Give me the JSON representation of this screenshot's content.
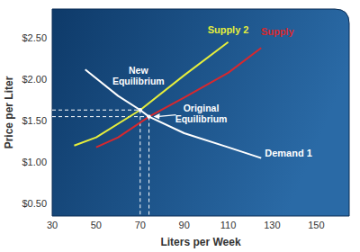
{
  "chart_data": {
    "type": "line",
    "x_label": "Liters per Week",
    "y_label": "Price per Liter",
    "xlim": [
      30,
      165
    ],
    "ylim": [
      0.35,
      2.85
    ],
    "xticks": [
      30,
      50,
      70,
      90,
      110,
      130,
      150
    ],
    "yticks": [
      {
        "value": 0.5,
        "label": "$0.50"
      },
      {
        "value": 1.0,
        "label": "$1.00"
      },
      {
        "value": 1.5,
        "label": "$1.50"
      },
      {
        "value": 2.0,
        "label": "$2.00"
      },
      {
        "value": 2.5,
        "label": "$2.50"
      }
    ],
    "grid": false,
    "series": [
      {
        "name": "Supply 2",
        "color": "#e6ee3c",
        "x": [
          40,
          50,
          70,
          90,
          110
        ],
        "values": [
          1.2,
          1.3,
          1.63,
          2.05,
          2.45
        ]
      },
      {
        "name": "Supply",
        "color": "#d7282e",
        "x": [
          50,
          60,
          74,
          90,
          110,
          125
        ],
        "values": [
          1.18,
          1.3,
          1.55,
          1.78,
          2.08,
          2.38
        ]
      },
      {
        "name": "Demand 1",
        "color": "#ffffff",
        "x": [
          45,
          60,
          70,
          74,
          90,
          110,
          125
        ],
        "values": [
          2.12,
          1.8,
          1.63,
          1.55,
          1.35,
          1.18,
          1.05
        ]
      }
    ],
    "equilibria": [
      {
        "label": "New Equilibrium",
        "x": 70,
        "y": 1.63
      },
      {
        "label": "Original Equilibrium",
        "x": 74,
        "y": 1.55
      }
    ]
  }
}
